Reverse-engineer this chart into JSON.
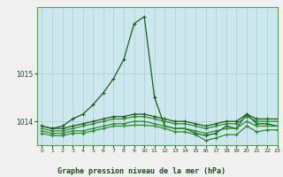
{
  "background_color": "#cce8ee",
  "grid_color": "#aacccc",
  "line_color_main": "#1a5c1a",
  "line_color_secondary": "#2d8a2d",
  "title": "Graphe pression niveau de la mer (hPa)",
  "xlim": [
    -0.5,
    23
  ],
  "ylim": [
    1013.5,
    1016.4
  ],
  "yticks": [
    1014,
    1015
  ],
  "xticks": [
    0,
    1,
    2,
    3,
    4,
    5,
    6,
    7,
    8,
    9,
    10,
    11,
    12,
    13,
    14,
    15,
    16,
    17,
    18,
    19,
    20,
    21,
    22,
    23
  ],
  "series": [
    [
      1013.9,
      1013.85,
      1013.9,
      1014.05,
      1014.15,
      1014.35,
      1014.6,
      1014.9,
      1015.3,
      1016.05,
      1016.2,
      1014.5,
      1013.9,
      1013.85,
      1013.85,
      1013.75,
      1013.7,
      1013.75,
      1013.9,
      1013.85,
      1014.15,
      1013.95,
      1013.95,
      1013.9
    ],
    [
      1013.85,
      1013.8,
      1013.8,
      1013.85,
      1013.9,
      1013.95,
      1014.0,
      1014.05,
      1014.05,
      1014.1,
      1014.1,
      1014.05,
      1014.0,
      1013.95,
      1013.95,
      1013.9,
      1013.85,
      1013.9,
      1013.95,
      1013.95,
      1014.1,
      1014.0,
      1014.0,
      1014.0
    ],
    [
      1013.8,
      1013.75,
      1013.75,
      1013.8,
      1013.8,
      1013.85,
      1013.9,
      1013.95,
      1013.95,
      1014.0,
      1014.0,
      1013.95,
      1013.9,
      1013.85,
      1013.85,
      1013.8,
      1013.75,
      1013.8,
      1013.85,
      1013.85,
      1014.0,
      1013.9,
      1013.9,
      1013.9
    ],
    [
      1013.9,
      1013.85,
      1013.85,
      1013.9,
      1013.95,
      1014.0,
      1014.05,
      1014.1,
      1014.1,
      1014.15,
      1014.15,
      1014.1,
      1014.05,
      1014.0,
      1014.0,
      1013.95,
      1013.9,
      1013.95,
      1014.0,
      1014.0,
      1014.15,
      1014.05,
      1014.05,
      1014.05
    ],
    [
      1013.75,
      1013.7,
      1013.7,
      1013.75,
      1013.75,
      1013.8,
      1013.85,
      1013.9,
      1013.9,
      1013.92,
      1013.92,
      1013.9,
      1013.85,
      1013.78,
      1013.78,
      1013.72,
      1013.6,
      1013.65,
      1013.72,
      1013.72,
      1013.9,
      1013.78,
      1013.82,
      1013.82
    ]
  ],
  "outer_bg": "#f0f0f0",
  "border_color": "#5a9a5a"
}
